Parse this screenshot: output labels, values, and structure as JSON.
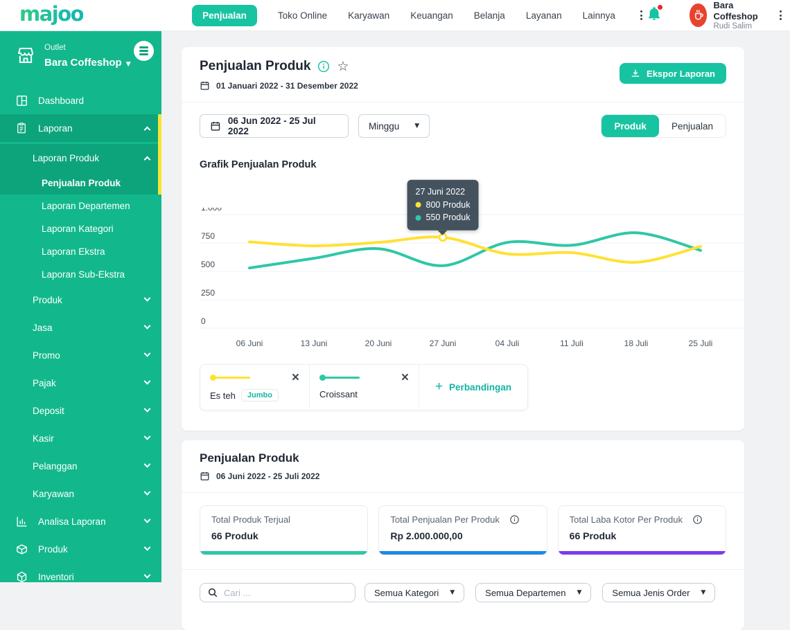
{
  "colors": {
    "brand": "#17c3a1",
    "sidebar": "#12b88c",
    "sidebar_active_bar": "#f7e533",
    "series_yellow": "#FFE135",
    "series_teal": "#2FC7A6",
    "notification": "#f5222d"
  },
  "header": {
    "logo": "majoo",
    "nav": [
      {
        "label": "Penjualan",
        "active": true
      },
      {
        "label": "Toko Online",
        "active": false
      },
      {
        "label": "Karyawan",
        "active": false
      },
      {
        "label": "Keuangan",
        "active": false
      },
      {
        "label": "Belanja",
        "active": false
      },
      {
        "label": "Layanan",
        "active": false
      },
      {
        "label": "Lainnya",
        "active": false
      }
    ],
    "account": {
      "name": "Bara Coffeshop",
      "role": "Rudi Salim"
    }
  },
  "sidebar": {
    "outlet_label": "Outlet",
    "outlet_name": "Bara Coffeshop",
    "items": [
      {
        "label": "Dashboard",
        "depth": 1,
        "icon": "dashboard"
      },
      {
        "label": "Laporan",
        "depth": 1,
        "icon": "report",
        "chevron": "up",
        "dark": true
      },
      {
        "label": "Laporan Produk",
        "depth": 2,
        "chevron": "up",
        "dark": true
      },
      {
        "label": "Penjualan Produk",
        "depth": 3,
        "dark": true,
        "active": true
      },
      {
        "label": "Laporan Departemen",
        "depth": 3
      },
      {
        "label": "Laporan Kategori",
        "depth": 3
      },
      {
        "label": "Laporan Ekstra",
        "depth": 3
      },
      {
        "label": "Laporan Sub-Ekstra",
        "depth": 3
      },
      {
        "label": "Produk",
        "depth": 2,
        "chevron": "down"
      },
      {
        "label": "Jasa",
        "depth": 2,
        "chevron": "down"
      },
      {
        "label": "Promo",
        "depth": 2,
        "chevron": "down"
      },
      {
        "label": "Pajak",
        "depth": 2,
        "chevron": "down"
      },
      {
        "label": "Deposit",
        "depth": 2,
        "chevron": "down"
      },
      {
        "label": "Kasir",
        "depth": 2,
        "chevron": "down"
      },
      {
        "label": "Pelanggan",
        "depth": 2,
        "chevron": "down"
      },
      {
        "label": "Karyawan",
        "depth": 2,
        "chevron": "down"
      },
      {
        "label": "Analisa Laporan",
        "depth": 1,
        "icon": "analytics",
        "chevron": "down"
      },
      {
        "label": "Produk",
        "depth": 1,
        "icon": "product",
        "chevron": "down"
      },
      {
        "label": "Inventori",
        "depth": 1,
        "icon": "inventory",
        "chevron": "down"
      }
    ]
  },
  "report": {
    "title": "Penjualan Produk",
    "period": "01 Januari 2022 - 31 Desember 2022",
    "export_label": "Ekspor Laporan",
    "filters": {
      "date_range": "06 Jun 2022 - 25 Jul 2022",
      "granularity": "Minggu",
      "views": [
        "Produk",
        "Penjualan"
      ],
      "active_view": "Produk"
    },
    "chart_title": "Grafik Penjualan Produk",
    "compare_label": "Perbandingan"
  },
  "chart_data": {
    "type": "line",
    "title": "Grafik Penjualan Produk",
    "x": [
      "06 Juni",
      "13 Juni",
      "20 Juni",
      "27 Juni",
      "04 Juli",
      "11 Juli",
      "18 Juli",
      "25 Juli"
    ],
    "series": [
      {
        "name": "Es teh",
        "variant": "Jumbo",
        "color": "#FFE135",
        "values": [
          760,
          725,
          755,
          800,
          655,
          665,
          580,
          720
        ]
      },
      {
        "name": "Croissant",
        "variant": null,
        "color": "#2FC7A6",
        "values": [
          530,
          615,
          700,
          550,
          755,
          730,
          840,
          685
        ]
      }
    ],
    "ylim": [
      0,
      1000
    ],
    "yticks": [
      {
        "value": 0,
        "label": "0"
      },
      {
        "value": 250,
        "label": "250"
      },
      {
        "value": 500,
        "label": "500"
      },
      {
        "value": 750,
        "label": "750"
      },
      {
        "value": 1000,
        "label": "1.000"
      }
    ],
    "grid": true,
    "legend_position": "bottom",
    "tooltip": {
      "x_index": 3,
      "title": "27 Juni 2022",
      "values": [
        "800 Produk",
        "550 Produk"
      ]
    }
  },
  "summary": {
    "title": "Penjualan Produk",
    "period": "06 Juni 2022 - 25 Juli 2022",
    "stats": [
      {
        "label": "Total Produk Terjual",
        "value": "66 Produk",
        "accent": "#2FC7A6",
        "info": false
      },
      {
        "label": "Total Penjualan Per Produk",
        "value": "Rp 2.000.000,00",
        "accent": "#1E88E5",
        "info": true
      },
      {
        "label": "Total Laba Kotor Per Produk",
        "value": "66 Produk",
        "accent": "#7C3AED",
        "info": true
      }
    ],
    "filters": {
      "search_placeholder": "Cari ...",
      "selects": [
        "Semua Kategori",
        "Semua Departemen",
        "Semua Jenis Order"
      ]
    }
  }
}
